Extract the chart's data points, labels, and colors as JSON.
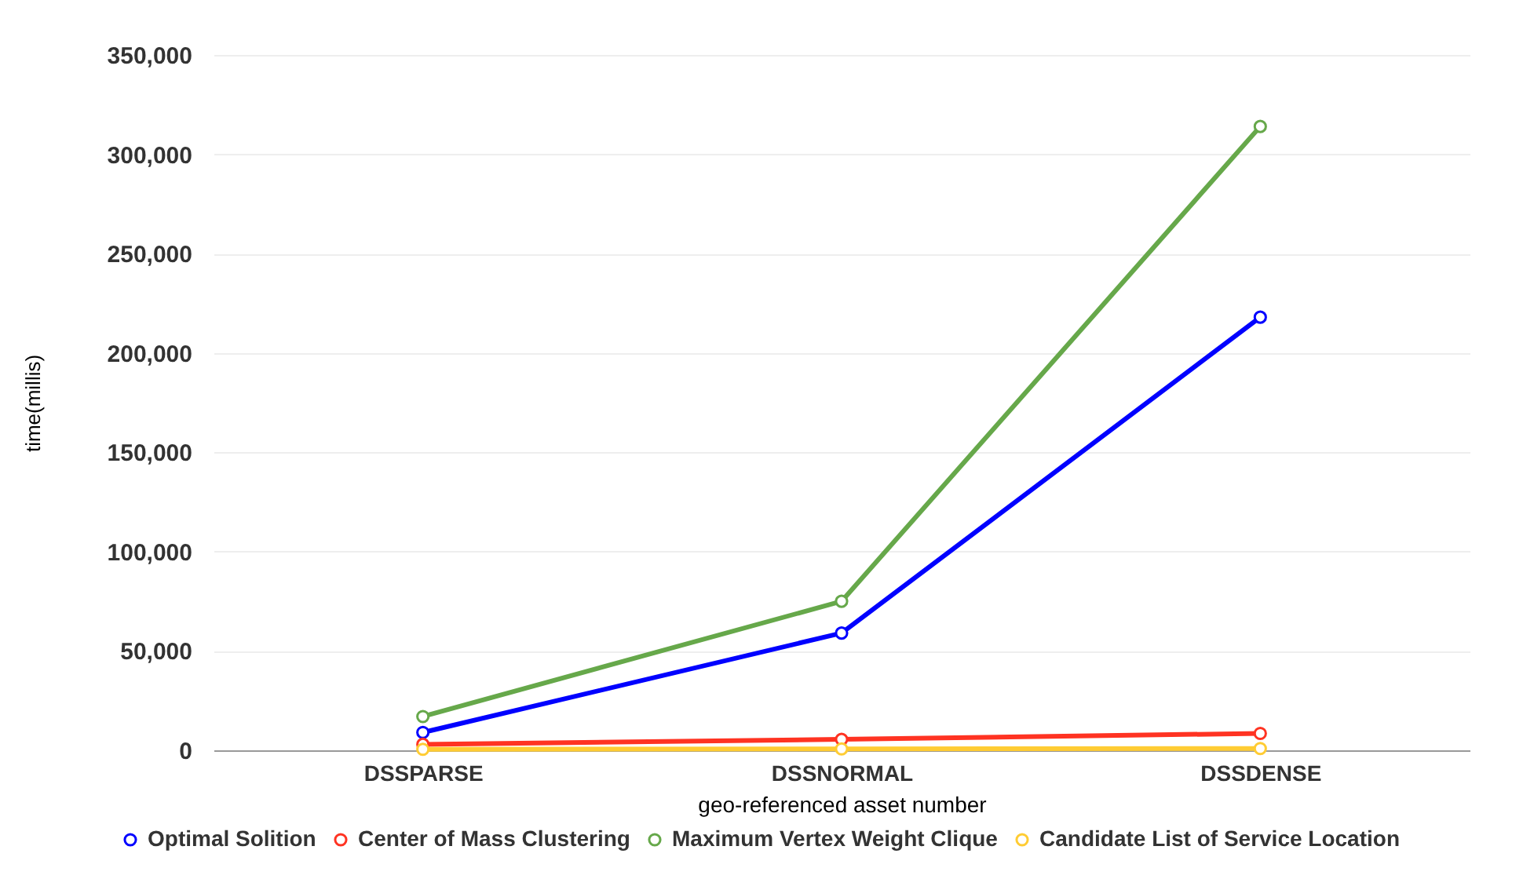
{
  "chart_data": {
    "type": "line",
    "xlabel": "geo-referenced asset number",
    "ylabel": "time(millis)",
    "categories": [
      "DSSPARSE",
      "DSSNORMAL",
      "DSSDENSE"
    ],
    "series": [
      {
        "name": "Optimal Solition",
        "color": "#0000ff",
        "values": [
          9000,
          59000,
          218000
        ]
      },
      {
        "name": "Center of Mass Clustering",
        "color": "#ff3322",
        "values": [
          3000,
          5500,
          8500
        ]
      },
      {
        "name": "Maximum Vertex Weight Clique",
        "color": "#66a84a",
        "values": [
          17000,
          75000,
          314000
        ]
      },
      {
        "name": "Candidate List of Service Location",
        "color": "#ffcc33",
        "values": [
          500,
          700,
          900
        ]
      }
    ],
    "ylim": [
      0,
      350000
    ],
    "yticks": [
      0,
      {
        "value": 50000,
        "label": "50,000"
      },
      {
        "value": 100000,
        "label": "100,000"
      },
      {
        "value": 150000,
        "label": "150,000"
      },
      {
        "value": 200000,
        "label": "200,000"
      },
      {
        "value": 250000,
        "label": "250,000"
      },
      {
        "value": 300000,
        "label": "300,000"
      },
      {
        "value": 350000,
        "label": "350,000"
      }
    ],
    "grid": "y",
    "legend": "bottom",
    "marker": "circle"
  }
}
